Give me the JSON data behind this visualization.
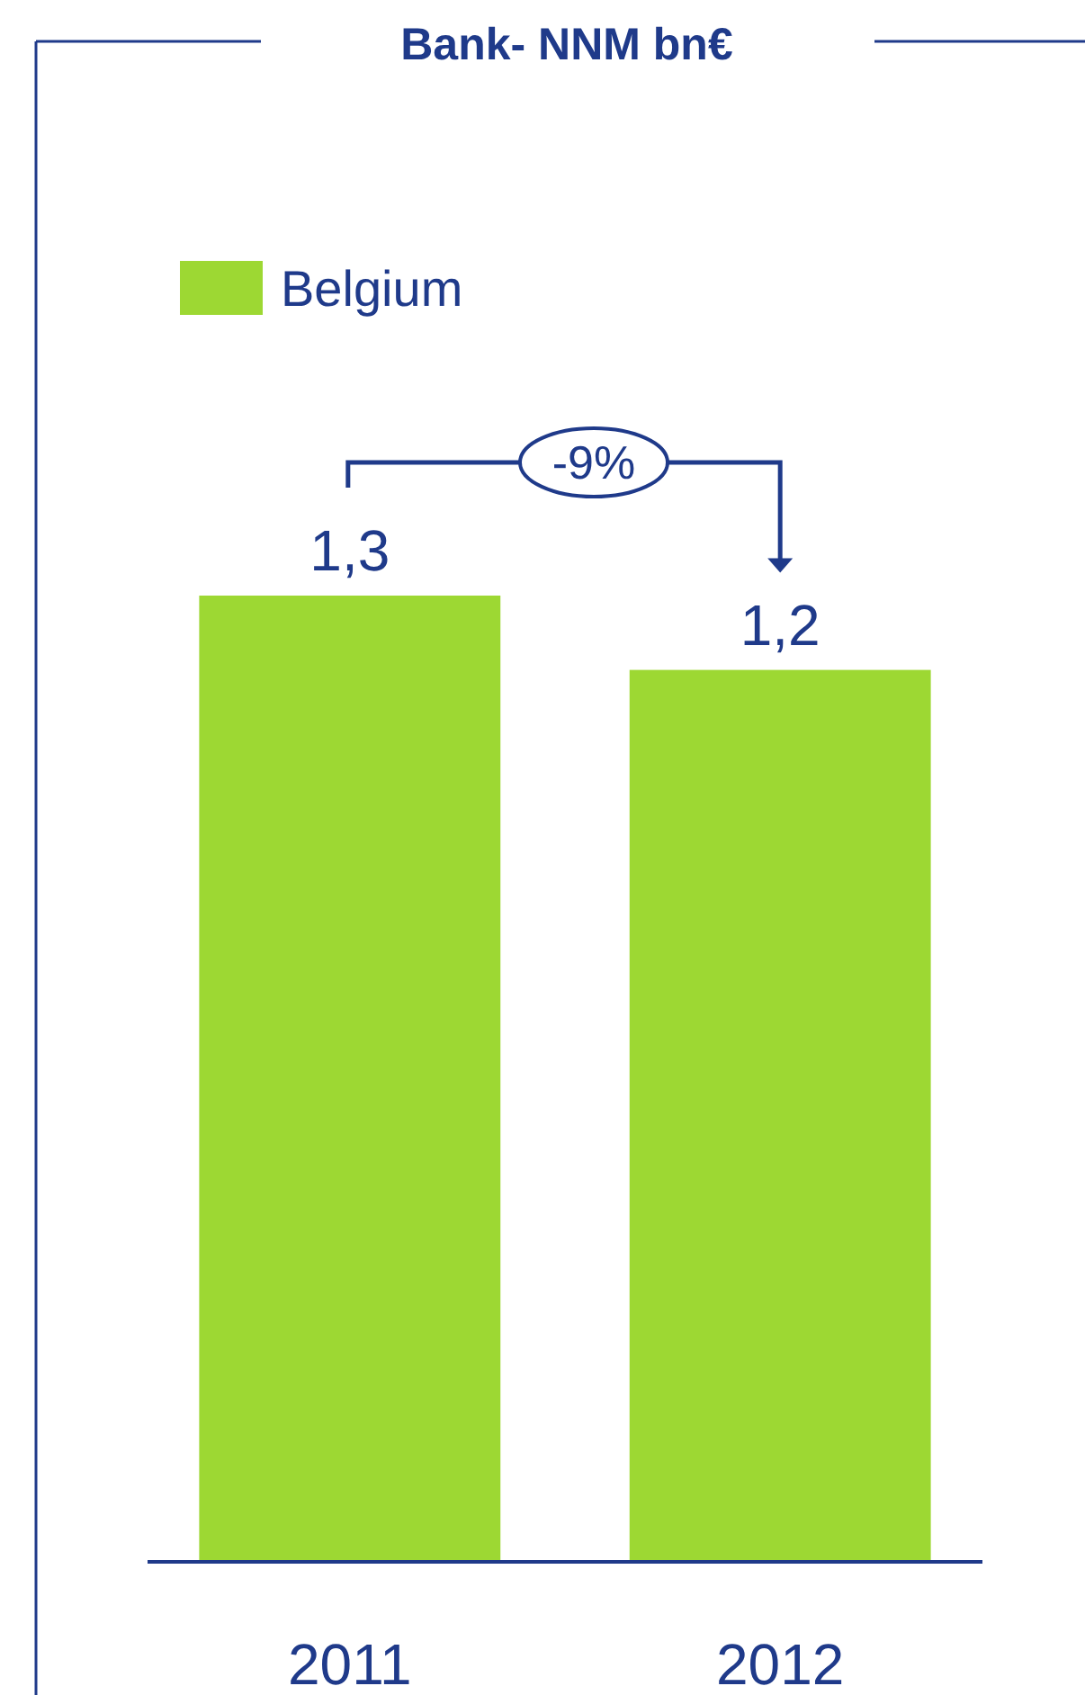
{
  "chart_data": {
    "type": "bar",
    "title": "Bank- NNM  bn€",
    "categories": [
      "2011",
      "2012"
    ],
    "series": [
      {
        "name": "Belgium",
        "color": "#9dd833",
        "values": [
          1.3,
          1.2
        ],
        "value_labels": [
          "1,3",
          "1,2"
        ]
      }
    ],
    "legend": "top left",
    "annotations": [
      "-9%"
    ]
  }
}
